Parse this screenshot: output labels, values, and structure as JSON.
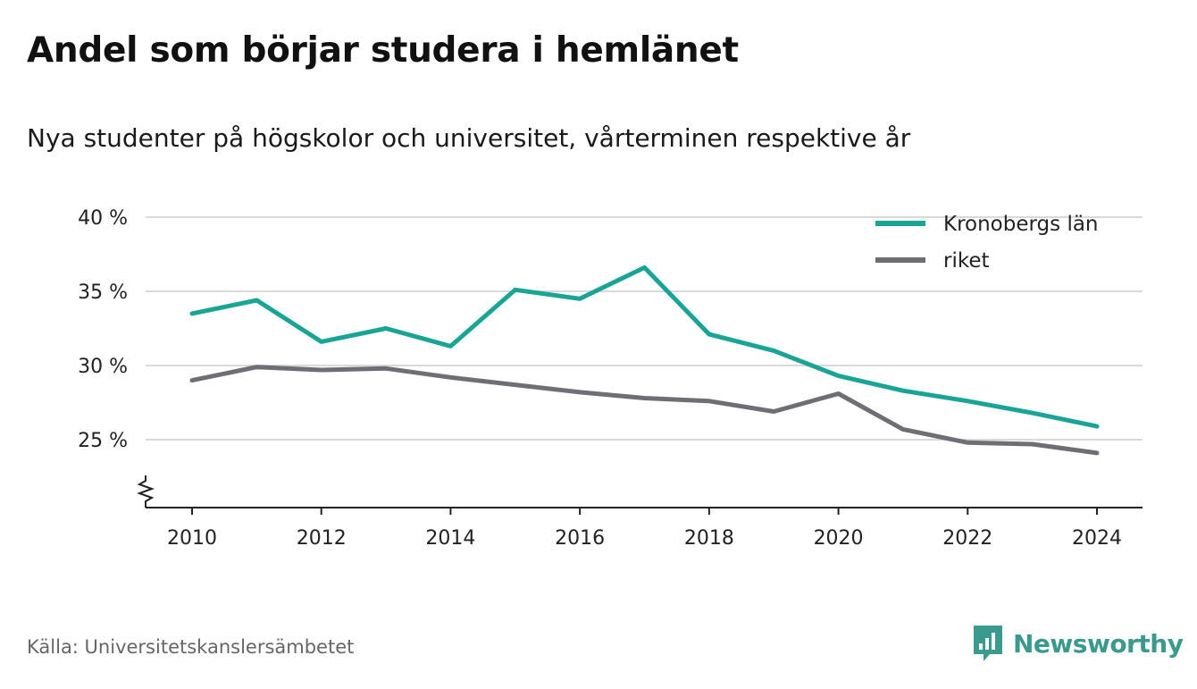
{
  "title": "Andel som börjar studera i hemlänet",
  "subtitle": "Nya studenter på högskolor och universitet, vårterminen respektive år",
  "source": "Källa: Universitetskanslersämbetet",
  "brand": {
    "name": "Newsworthy",
    "icon": "newsworthy-logo-icon",
    "color": "#3a9a8e"
  },
  "chart_data": {
    "type": "line",
    "title": "Andel som börjar studera i hemlänet",
    "subtitle": "Nya studenter på högskolor och universitet, vårterminen respektive år",
    "xlabel": "",
    "ylabel": "",
    "x": [
      2010,
      2011,
      2012,
      2013,
      2014,
      2015,
      2016,
      2017,
      2018,
      2019,
      2020,
      2021,
      2022,
      2023,
      2024
    ],
    "xticks": [
      "2010",
      "2012",
      "2014",
      "2016",
      "2018",
      "2020",
      "2022",
      "2024"
    ],
    "xlim": [
      2009.3,
      2024.7
    ],
    "yticks": [
      {
        "value": 25,
        "label": "25 %"
      },
      {
        "value": 30,
        "label": "30 %"
      },
      {
        "value": 35,
        "label": "35 %"
      },
      {
        "value": 40,
        "label": "40 %"
      }
    ],
    "ylim": [
      20.5,
      40
    ],
    "y_axis_break": true,
    "grid": true,
    "legend_position": "top-right",
    "series": [
      {
        "name": "Kronobergs län",
        "color": "#1aa496",
        "values": [
          33.5,
          34.4,
          31.6,
          32.5,
          31.3,
          35.1,
          34.5,
          36.6,
          32.1,
          31.0,
          29.3,
          28.3,
          27.6,
          26.8,
          25.9
        ]
      },
      {
        "name": "riket",
        "color": "#6e6e74",
        "values": [
          29.0,
          29.9,
          29.7,
          29.8,
          29.2,
          28.7,
          28.2,
          27.8,
          27.6,
          26.9,
          28.1,
          25.7,
          24.8,
          24.7,
          24.1
        ]
      }
    ]
  }
}
